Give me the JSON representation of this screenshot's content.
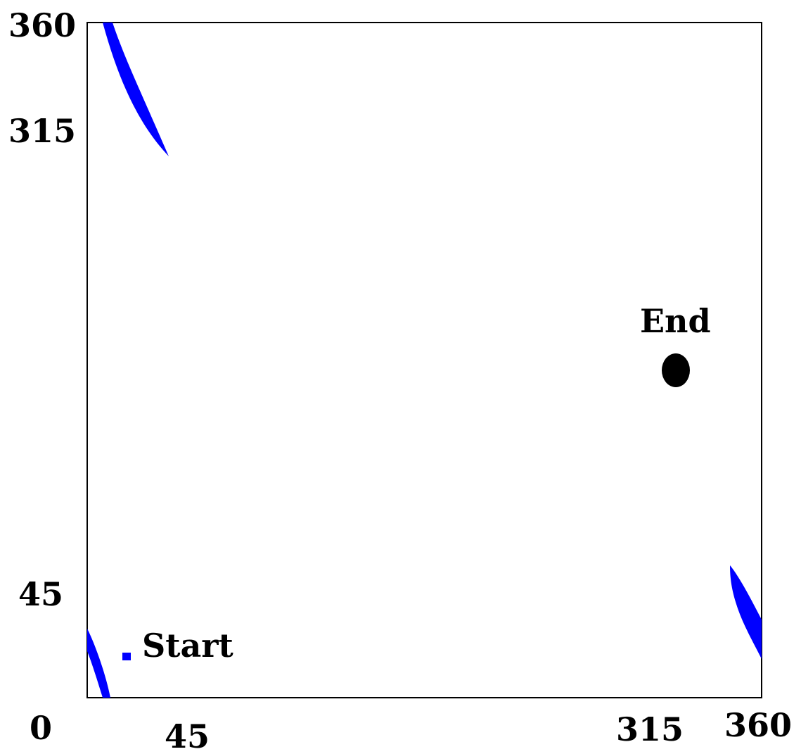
{
  "diagram": {
    "x_ticks": [
      "0",
      "45",
      "315",
      "360"
    ],
    "y_ticks": [
      "360",
      "315",
      "45"
    ],
    "start_label": "Start",
    "end_label": "End"
  },
  "colors": {
    "obstacle": "#0000ff",
    "start_marker": "#0000ff",
    "end_marker": "#000000",
    "frame": "#000000",
    "background": "#ffffff"
  },
  "markers": {
    "start": {
      "x": 40,
      "y": 45
    },
    "end": {
      "x": 314,
      "y": 155
    }
  }
}
